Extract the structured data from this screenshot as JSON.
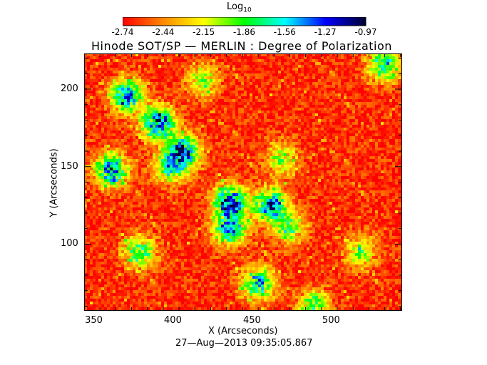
{
  "chart_data": {
    "type": "heatmap",
    "title": "Hinode SOT/SP — MERLIN : Degree of Polarization",
    "colorbar": {
      "label_main": "Log",
      "label_sub": "10",
      "ticks": [
        "-2.74",
        "-2.44",
        "-2.15",
        "-1.86",
        "-1.56",
        "-1.27",
        "-0.97"
      ],
      "range": [
        -2.74,
        -0.97
      ],
      "colormap": [
        "#ff0000",
        "#ff8800",
        "#ffff00",
        "#00ff00",
        "#00ffff",
        "#0000ff",
        "#000033"
      ]
    },
    "x_axis": {
      "label": "X (Arcseconds)",
      "range": [
        345,
        546
      ],
      "ticks": [
        350,
        400,
        450,
        500
      ],
      "tick_labels": [
        "350",
        "400",
        "450",
        "500"
      ]
    },
    "y_axis": {
      "label": "Y (Arcseconds)",
      "range": [
        57,
        223
      ],
      "ticks": [
        100,
        150,
        200
      ],
      "tick_labels": [
        "100",
        "150",
        "200"
      ]
    },
    "features": [
      {
        "x": 392,
        "y": 178,
        "value": -1.05
      },
      {
        "x": 372,
        "y": 196,
        "value": -1.2
      },
      {
        "x": 362,
        "y": 148,
        "value": -1.15
      },
      {
        "x": 408,
        "y": 160,
        "value": -1.2
      },
      {
        "x": 437,
        "y": 128,
        "value": -1.1
      },
      {
        "x": 437,
        "y": 110,
        "value": -1.3
      },
      {
        "x": 463,
        "y": 125,
        "value": -1.15
      },
      {
        "x": 400,
        "y": 150,
        "value": -1.6
      },
      {
        "x": 470,
        "y": 155,
        "value": -1.9
      },
      {
        "x": 475,
        "y": 110,
        "value": -1.8
      },
      {
        "x": 455,
        "y": 75,
        "value": -1.4
      },
      {
        "x": 380,
        "y": 95,
        "value": -1.6
      },
      {
        "x": 535,
        "y": 215,
        "value": -1.5
      },
      {
        "x": 520,
        "y": 95,
        "value": -1.9
      },
      {
        "x": 420,
        "y": 205,
        "value": -1.9
      },
      {
        "x": 490,
        "y": 60,
        "value": -1.7
      }
    ],
    "background_value": -2.65
  },
  "footer": {
    "timestamp": "27—Aug—2013 09:35:05.867"
  }
}
